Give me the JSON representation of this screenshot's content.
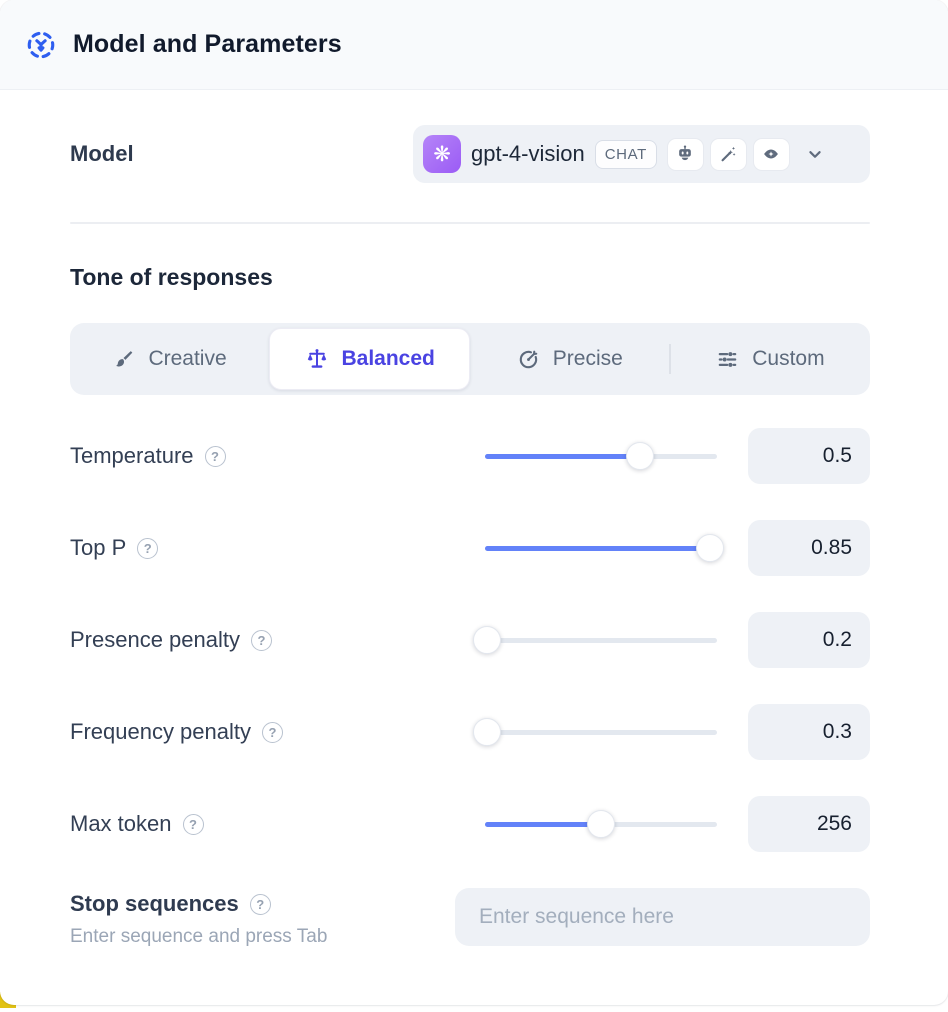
{
  "header": {
    "title": "Model and Parameters",
    "icon": "model-nodes-icon"
  },
  "model_row": {
    "label": "Model",
    "value": "gpt-4-vision",
    "provider_icon": "openai-logo",
    "provider_glyph": "❋",
    "type_badge": "CHAT",
    "capability_badges": [
      "robot-icon",
      "magic-wand-icon",
      "vision-eye-icon"
    ],
    "chevron": "chevron-down-icon"
  },
  "tone": {
    "title": "Tone of responses",
    "tabs": [
      {
        "label": "Creative",
        "icon": "paintbrush-icon",
        "active": false
      },
      {
        "label": "Balanced",
        "icon": "balance-scale-icon",
        "active": true
      },
      {
        "label": "Precise",
        "icon": "target-icon",
        "active": false
      },
      {
        "label": "Custom",
        "icon": "sliders-icon",
        "active": false
      }
    ]
  },
  "parameters": [
    {
      "label": "Temperature",
      "value": "0.5",
      "slider_percent": 67
    },
    {
      "label": "Top P",
      "value": "0.85",
      "slider_percent": 97
    },
    {
      "label": "Presence penalty",
      "value": "0.2",
      "slider_percent": 1
    },
    {
      "label": "Frequency penalty",
      "value": "0.3",
      "slider_percent": 1
    },
    {
      "label": "Max token",
      "value": "256",
      "slider_percent": 50
    }
  ],
  "stop_sequences": {
    "label": "Stop sequences",
    "hint": "Enter sequence and press Tab",
    "placeholder": "Enter sequence here"
  },
  "ui": {
    "help_glyph": "?"
  },
  "colors": {
    "header_bg": "#f8fafc",
    "header_icon_blue": "#2e5ef0",
    "accent_indigo": "#4a43e2",
    "slider_blue": "#6382f9",
    "control_bg": "#eef1f6",
    "provider_purple": "#a364f7",
    "corner_yellow": "#e2c214"
  }
}
